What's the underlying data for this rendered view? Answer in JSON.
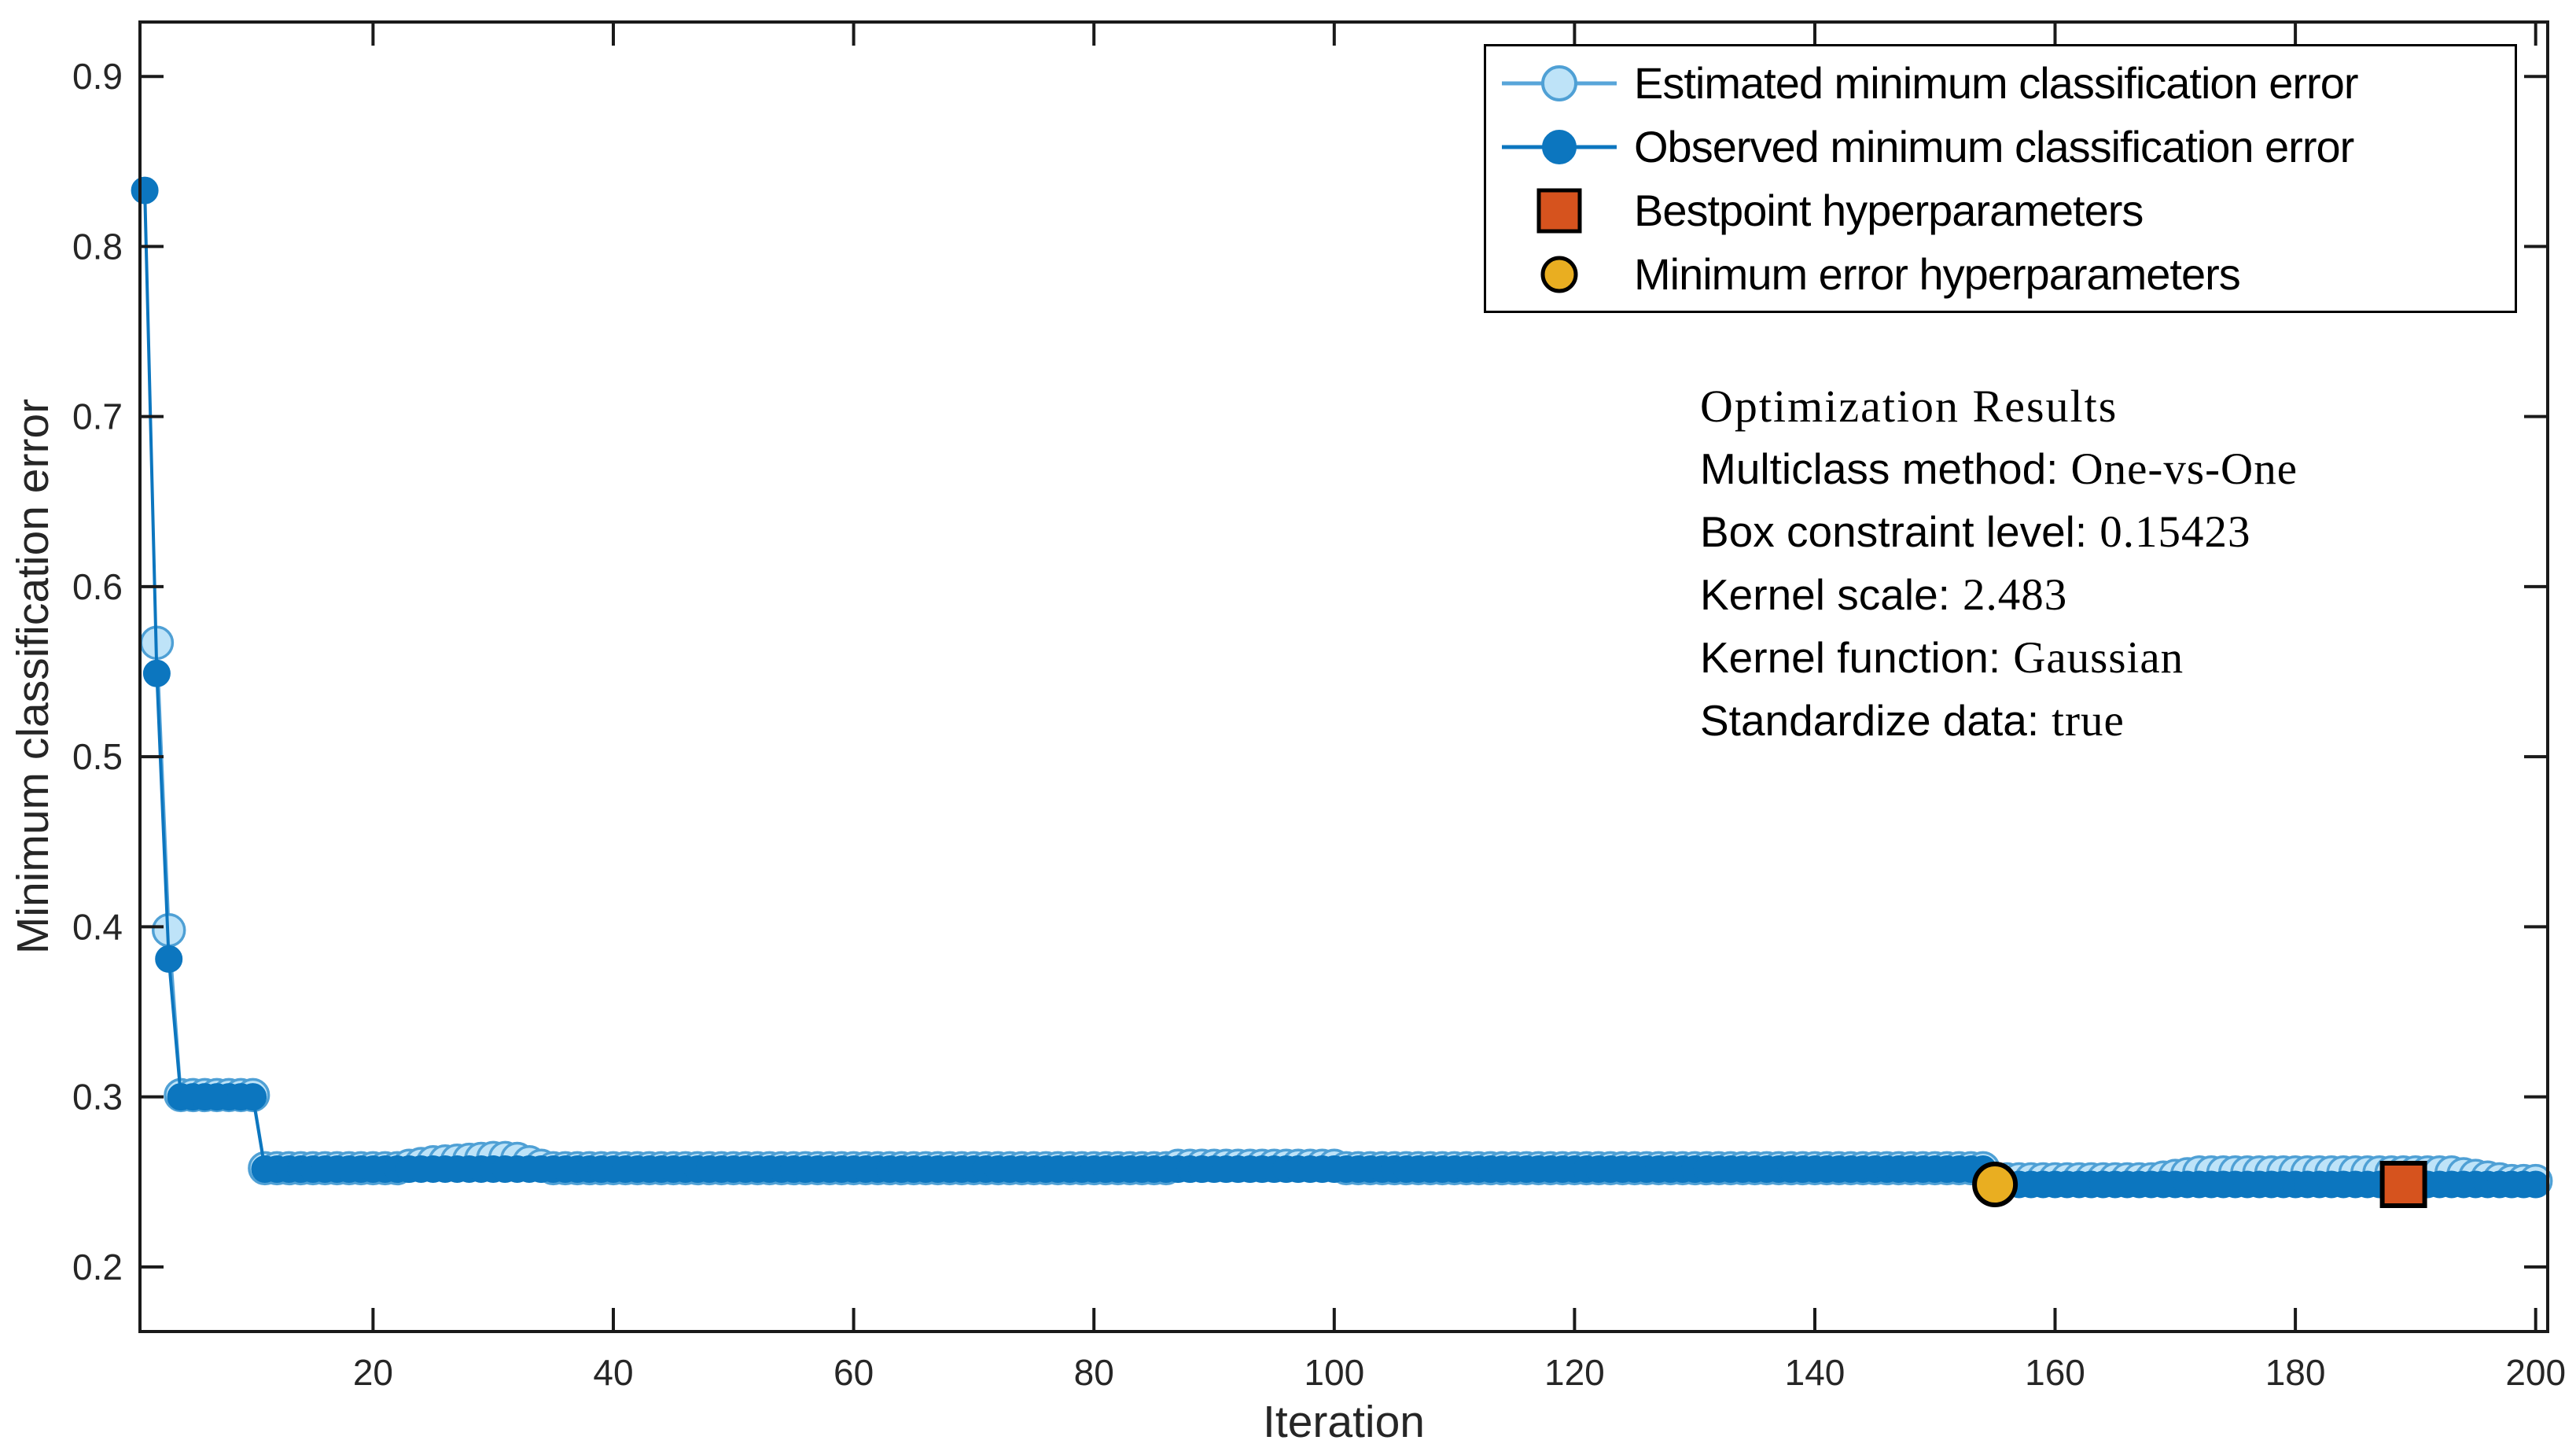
{
  "figure": {
    "background": "#ffffff"
  },
  "chart_data": {
    "type": "line",
    "title": "",
    "xlabel": "Iteration",
    "ylabel": "Minimum classification error",
    "xlim": [
      0.6,
      201
    ],
    "ylim": [
      0.162,
      0.932
    ],
    "xticks": [
      20,
      40,
      60,
      80,
      100,
      120,
      140,
      160,
      180,
      200
    ],
    "yticks": [
      0.2,
      0.3,
      0.4,
      0.5,
      0.6,
      0.7,
      0.8,
      0.9
    ],
    "grid": false,
    "box": true,
    "tick_dir": "in",
    "axis_color": "#1a1a1a",
    "tick_label_color": "#262626",
    "legend_position": "top-right",
    "series": [
      {
        "name": "Estimated minimum classification error",
        "line_color": "#58A5D9",
        "marker": "circle",
        "marker_fill": "#BEE3F8",
        "marker_edge": "#4FA0D5",
        "segments": [
          [
            2,
            2,
            0.567
          ],
          [
            3,
            3,
            0.398
          ],
          [
            4,
            10,
            0.301
          ],
          [
            11,
            22,
            0.258
          ],
          [
            23,
            23,
            0.2595
          ],
          [
            24,
            24,
            0.2605
          ],
          [
            25,
            25,
            0.2615
          ],
          [
            26,
            26,
            0.262
          ],
          [
            27,
            27,
            0.2625
          ],
          [
            28,
            28,
            0.263
          ],
          [
            29,
            29,
            0.2635
          ],
          [
            30,
            31,
            0.264
          ],
          [
            32,
            32,
            0.2635
          ],
          [
            33,
            33,
            0.2615
          ],
          [
            34,
            34,
            0.2595
          ],
          [
            35,
            86,
            0.258
          ],
          [
            87,
            100,
            0.2595
          ],
          [
            101,
            154,
            0.258
          ],
          [
            155,
            168,
            0.2515
          ],
          [
            169,
            169,
            0.2525
          ],
          [
            170,
            170,
            0.2535
          ],
          [
            171,
            171,
            0.2545
          ],
          [
            172,
            193,
            0.2555
          ],
          [
            194,
            194,
            0.2545
          ],
          [
            195,
            195,
            0.2535
          ],
          [
            196,
            196,
            0.2525
          ],
          [
            197,
            197,
            0.2515
          ],
          [
            198,
            200,
            0.2505
          ]
        ]
      },
      {
        "name": "Observed minimum classification error",
        "line_color": "#0C76BF",
        "marker": "circle",
        "marker_fill": "#0C76BF",
        "marker_edge": "#0C76BF",
        "segments": [
          [
            1,
            1,
            0.833
          ],
          [
            2,
            2,
            0.549
          ],
          [
            3,
            3,
            0.381
          ],
          [
            4,
            10,
            0.3
          ],
          [
            11,
            154,
            0.2575
          ],
          [
            155,
            200,
            0.2485
          ]
        ]
      }
    ],
    "best_point": {
      "name": "Bestpoint hyperparameters",
      "x": 189,
      "y": 0.2485,
      "fill": "#D6531E",
      "edge": "#000000"
    },
    "min_error_point": {
      "name": "Minimum error hyperparameters",
      "x": 155,
      "y": 0.2485,
      "fill": "#E9AE21",
      "edge": "#000000"
    }
  },
  "legend": {
    "items": [
      {
        "label": "Estimated minimum classification error"
      },
      {
        "label": "Observed minimum classification error"
      },
      {
        "label": "Bestpoint hyperparameters"
      },
      {
        "label": "Minimum error hyperparameters"
      }
    ]
  },
  "annotation": {
    "title": "Optimization Results",
    "lines": [
      {
        "label": "Multiclass method:",
        "value": "One-vs-One"
      },
      {
        "label": "Box constraint level:",
        "value": "0.15423"
      },
      {
        "label": "Kernel scale:",
        "value": "2.483"
      },
      {
        "label": "Kernel function:",
        "value": "Gaussian"
      },
      {
        "label": "Standardize data:",
        "value": "true"
      }
    ]
  }
}
